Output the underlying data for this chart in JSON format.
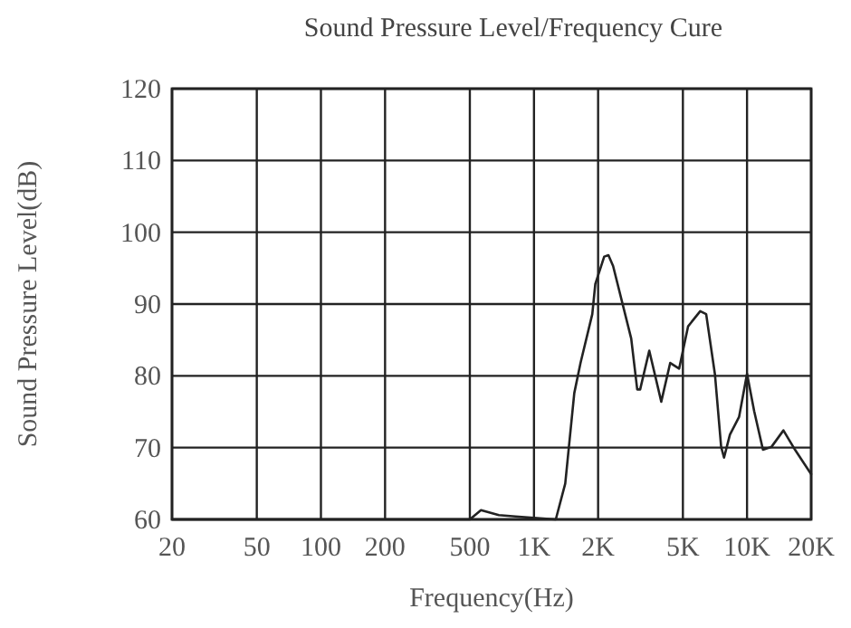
{
  "chart_data": {
    "type": "line",
    "title": "Sound Pressure Level/Frequency Cure",
    "xlabel": "Frequency(Hz)",
    "ylabel": "Sound Pressure Level(dB)",
    "log": "x",
    "grid": true,
    "line_style": "solid",
    "xlim": [
      20,
      20000
    ],
    "ylim": [
      60,
      120
    ],
    "xticks": [
      20,
      50,
      100,
      200,
      500,
      {
        "value": 1000,
        "label": "1K"
      },
      {
        "value": 2000,
        "label": "2K"
      },
      {
        "value": 5000,
        "label": "5K"
      },
      {
        "value": 10000,
        "label": "10K"
      },
      {
        "value": 20000,
        "label": "20K"
      }
    ],
    "yticks": [
      60,
      70,
      80,
      90,
      100,
      110,
      120
    ],
    "x": [
      20,
      500,
      564,
      684,
      820,
      1000,
      1266,
      1402,
      1546,
      1654,
      1878,
      1940,
      2136,
      2236,
      2352,
      2860,
      3052,
      3150,
      3476,
      3958,
      4360,
      4800,
      5290,
      6030,
      6430,
      7070,
      7560,
      7800,
      8310,
      9180,
      10000,
      10800,
      11880,
      13020,
      14820,
      16800,
      20000
    ],
    "series": [
      {
        "color": "#222222",
        "values": [
          60,
          60,
          61.3,
          60.6,
          60.4,
          60.2,
          60,
          65,
          77.6,
          81.8,
          88.6,
          92.8,
          96.6,
          96.8,
          95.3,
          85.2,
          78.1,
          78.1,
          83.5,
          76.4,
          81.8,
          81,
          86.9,
          89,
          88.6,
          80.2,
          70.1,
          68.6,
          71.8,
          74.3,
          80.3,
          75.1,
          69.7,
          70.1,
          72.4,
          69.7,
          66.3
        ]
      }
    ]
  }
}
